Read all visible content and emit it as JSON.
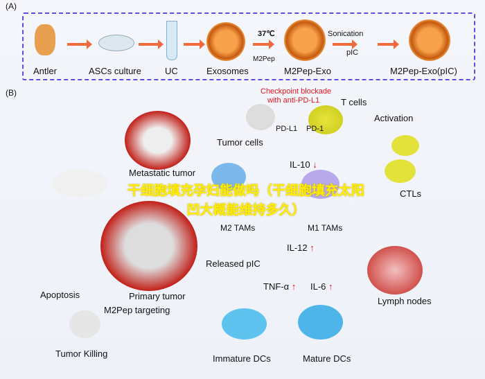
{
  "panel_a": {
    "label": "(A)",
    "steps": [
      "Antler",
      "ASCs culture",
      "UC",
      "Exosomes",
      "M2Pep-Exo",
      "M2Pep-Exo(pIC)"
    ],
    "temp": "37℃",
    "peptide": "M2Pep",
    "sonication": "Sonication",
    "pic": "pIC"
  },
  "panel_b": {
    "label": "(B)",
    "checkpoint": "Checkpoint blockade",
    "anti": "with anti-PD-L1",
    "t_cells": "T cells",
    "pd_l1": "PD-L1",
    "pd_1": "PD-1",
    "tumor_cells": "Tumor cells",
    "activation": "Activation",
    "metastatic": "Metastatic tumor",
    "il10": "IL-10",
    "m2tams": "M2 TAMs",
    "m1tams": "M1 TAMs",
    "ctls": "CTLs",
    "il12": "IL-12",
    "released": "Released pIC",
    "tnf": "TNF-α",
    "il6": "IL-6",
    "primary": "Primary tumor",
    "apoptosis": "Apoptosis",
    "targeting": "M2Pep targeting",
    "lymph": "Lymph nodes",
    "killing": "Tumor Killing",
    "immature": "Immature DCs",
    "mature": "Mature DCs",
    "down": "↓",
    "up": "↑"
  },
  "overlay": "干细胞填充孕妇能做吗（干细胞填充太阳凹大概能维持多久）"
}
